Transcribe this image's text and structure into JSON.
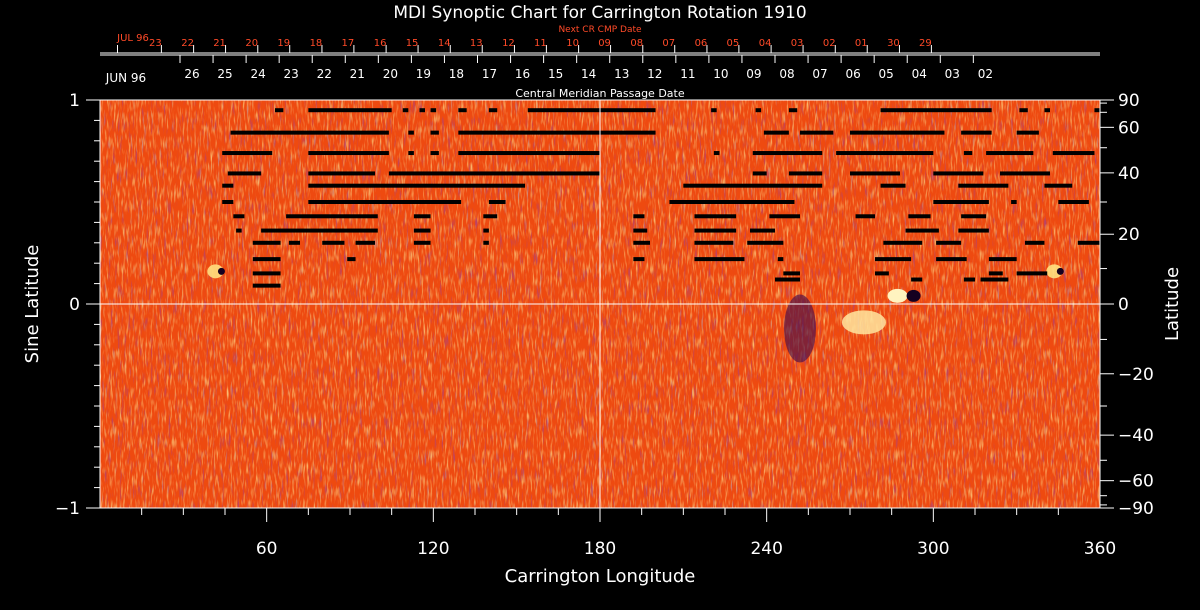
{
  "chart_data": {
    "type": "heatmap",
    "title": "MDI Synoptic Chart for Carrington Rotation 1910",
    "xlabel": "Carrington Longitude",
    "ylabel_left": "Sine Latitude",
    "ylabel_right": "Latitude",
    "xlim": [
      0,
      360
    ],
    "ylim": [
      -1,
      1
    ],
    "x_ticks": [
      60,
      120,
      180,
      240,
      300,
      360
    ],
    "y_ticks_left": [
      {
        "value": 1,
        "label": "1"
      },
      {
        "value": 0,
        "label": "0"
      },
      {
        "value": -1,
        "label": "−1"
      }
    ],
    "y_ticks_right": [
      {
        "lat": 90,
        "label": "90"
      },
      {
        "lat": 60,
        "label": "60"
      },
      {
        "lat": 40,
        "label": "40"
      },
      {
        "lat": 20,
        "label": "20"
      },
      {
        "lat": 0,
        "label": "0"
      },
      {
        "lat": -20,
        "label": "−20"
      },
      {
        "lat": -40,
        "label": "−40"
      },
      {
        "lat": -60,
        "label": "−60"
      },
      {
        "lat": -90,
        "label": "−90"
      }
    ],
    "right_minor_lats": [
      80,
      70,
      50,
      30,
      10,
      -10,
      -30,
      -50,
      -70,
      -80
    ],
    "top_axis_label": "Next CR CMP Date",
    "top_axis_month": "JUL 96",
    "top_axis_days": [
      "23",
      "22",
      "21",
      "20",
      "19",
      "18",
      "17",
      "16",
      "15",
      "14",
      "13",
      "12",
      "11",
      "10",
      "09",
      "08",
      "07",
      "06",
      "05",
      "04",
      "03",
      "02",
      "01",
      "30",
      "29"
    ],
    "top_axis_day_lons": [
      22.1,
      33.7,
      45.2,
      56.8,
      68.3,
      79.9,
      91.4,
      103.0,
      114.5,
      126.1,
      137.6,
      149.2,
      160.7,
      172.3,
      183.8,
      195.4,
      206.9,
      218.5,
      230.0,
      241.6,
      253.1,
      264.7,
      276.2,
      287.8,
      299.3
    ],
    "top_axis_month_lon": 6.3,
    "cmp_axis_label": "Central Meridian Passage Date",
    "cmp_axis_month": "JUN 96",
    "cmp_axis_days": [
      "26",
      "25",
      "24",
      "23",
      "22",
      "21",
      "20",
      "19",
      "18",
      "17",
      "16",
      "15",
      "14",
      "13",
      "12",
      "11",
      "10",
      "09",
      "08",
      "07",
      "06",
      "05",
      "04",
      "03",
      "02"
    ],
    "cmp_axis_day_lons": [
      28.8,
      40.7,
      52.6,
      64.5,
      76.4,
      88.3,
      100.2,
      112.1,
      124.0,
      135.9,
      147.8,
      159.7,
      171.6,
      183.5,
      195.4,
      207.3,
      219.2,
      231.1,
      243.0,
      254.9,
      266.8,
      278.7,
      290.6,
      302.5,
      314.4
    ],
    "colors": {
      "background": "#000000",
      "field_base": "#ee4a10",
      "field_light": "#ffd040",
      "field_dark": "#4a0a4a",
      "missing_data": "#000000",
      "axis": "#ffffff",
      "top_axis": "#ff4a28"
    },
    "features": [
      {
        "name": "positive region",
        "lon": 275,
        "sinlat": -0.09
      },
      {
        "name": "bipolar region",
        "lon": 290,
        "sinlat": 0.04
      },
      {
        "name": "spot",
        "lon": 43,
        "sinlat": 0.16
      },
      {
        "name": "negative region",
        "lon": 252,
        "sinlat": -0.12
      },
      {
        "name": "spot",
        "lon": 345,
        "sinlat": 0.16
      }
    ],
    "gaps": [
      [
        63,
        66,
        0.95
      ],
      [
        75,
        105,
        0.95
      ],
      [
        109,
        111,
        0.95
      ],
      [
        115,
        117,
        0.95
      ],
      [
        119,
        121,
        0.95
      ],
      [
        129,
        132,
        0.95
      ],
      [
        140,
        143,
        0.95
      ],
      [
        154,
        200,
        0.95
      ],
      [
        220,
        222,
        0.95
      ],
      [
        236,
        238,
        0.95
      ],
      [
        248,
        251,
        0.95
      ],
      [
        281,
        321,
        0.95
      ],
      [
        331,
        334,
        0.95
      ],
      [
        340,
        342,
        0.95
      ],
      [
        358,
        360,
        0.95
      ],
      [
        47,
        104,
        0.84
      ],
      [
        111,
        113,
        0.84
      ],
      [
        119,
        122,
        0.84
      ],
      [
        129,
        200,
        0.84
      ],
      [
        239,
        248,
        0.84
      ],
      [
        252,
        264,
        0.84
      ],
      [
        270,
        304,
        0.84
      ],
      [
        310,
        321,
        0.84
      ],
      [
        330,
        338,
        0.84
      ],
      [
        44,
        62,
        0.74
      ],
      [
        75,
        104,
        0.74
      ],
      [
        111,
        113,
        0.74
      ],
      [
        119,
        122,
        0.74
      ],
      [
        129,
        180,
        0.74
      ],
      [
        221,
        223,
        0.74
      ],
      [
        235,
        260,
        0.74
      ],
      [
        265,
        300,
        0.74
      ],
      [
        311,
        314,
        0.74
      ],
      [
        319,
        336,
        0.74
      ],
      [
        343,
        358,
        0.74
      ],
      [
        46,
        58,
        0.64
      ],
      [
        75,
        99,
        0.64
      ],
      [
        104,
        180,
        0.64
      ],
      [
        235,
        240,
        0.64
      ],
      [
        248,
        260,
        0.64
      ],
      [
        270,
        288,
        0.64
      ],
      [
        300,
        318,
        0.64
      ],
      [
        324,
        342,
        0.64
      ],
      [
        44,
        48,
        0.58
      ],
      [
        75,
        153,
        0.58
      ],
      [
        210,
        260,
        0.58
      ],
      [
        281,
        290,
        0.58
      ],
      [
        309,
        327,
        0.58
      ],
      [
        340,
        350,
        0.58
      ],
      [
        44,
        48,
        0.5
      ],
      [
        75,
        130,
        0.5
      ],
      [
        140,
        146,
        0.5
      ],
      [
        205,
        250,
        0.5
      ],
      [
        300,
        320,
        0.5
      ],
      [
        328,
        330,
        0.5
      ],
      [
        345,
        356,
        0.5
      ],
      [
        48,
        52,
        0.43
      ],
      [
        67,
        100,
        0.43
      ],
      [
        113,
        119,
        0.43
      ],
      [
        138,
        143,
        0.43
      ],
      [
        192,
        196,
        0.43
      ],
      [
        214,
        229,
        0.43
      ],
      [
        241,
        252,
        0.43
      ],
      [
        272,
        279,
        0.43
      ],
      [
        291,
        299,
        0.43
      ],
      [
        310,
        319,
        0.43
      ],
      [
        49,
        51,
        0.36
      ],
      [
        58,
        100,
        0.36
      ],
      [
        113,
        119,
        0.36
      ],
      [
        138,
        140,
        0.36
      ],
      [
        192,
        197,
        0.36
      ],
      [
        214,
        229,
        0.36
      ],
      [
        234,
        243,
        0.36
      ],
      [
        290,
        302,
        0.36
      ],
      [
        309,
        320,
        0.36
      ],
      [
        55,
        65,
        0.3
      ],
      [
        68,
        72,
        0.3
      ],
      [
        80,
        88,
        0.3
      ],
      [
        92,
        99,
        0.3
      ],
      [
        113,
        119,
        0.3
      ],
      [
        138,
        140,
        0.3
      ],
      [
        192,
        198,
        0.3
      ],
      [
        214,
        228,
        0.3
      ],
      [
        233,
        246,
        0.3
      ],
      [
        282,
        296,
        0.3
      ],
      [
        301,
        310,
        0.3
      ],
      [
        333,
        340,
        0.3
      ],
      [
        352,
        360,
        0.3
      ],
      [
        55,
        65,
        0.22
      ],
      [
        89,
        92,
        0.22
      ],
      [
        192,
        196,
        0.22
      ],
      [
        214,
        232,
        0.22
      ],
      [
        244,
        246,
        0.22
      ],
      [
        279,
        292,
        0.22
      ],
      [
        301,
        312,
        0.22
      ],
      [
        320,
        330,
        0.22
      ],
      [
        55,
        65,
        0.15
      ],
      [
        246,
        252,
        0.15
      ],
      [
        279,
        284,
        0.15
      ],
      [
        320,
        325,
        0.15
      ],
      [
        330,
        341,
        0.15
      ],
      [
        55,
        65,
        0.09
      ],
      [
        243,
        252,
        0.12
      ],
      [
        292,
        296,
        0.12
      ],
      [
        311,
        315,
        0.12
      ],
      [
        317,
        327,
        0.12
      ]
    ],
    "legend": "none",
    "grid": "meridian at 180 and equator"
  }
}
